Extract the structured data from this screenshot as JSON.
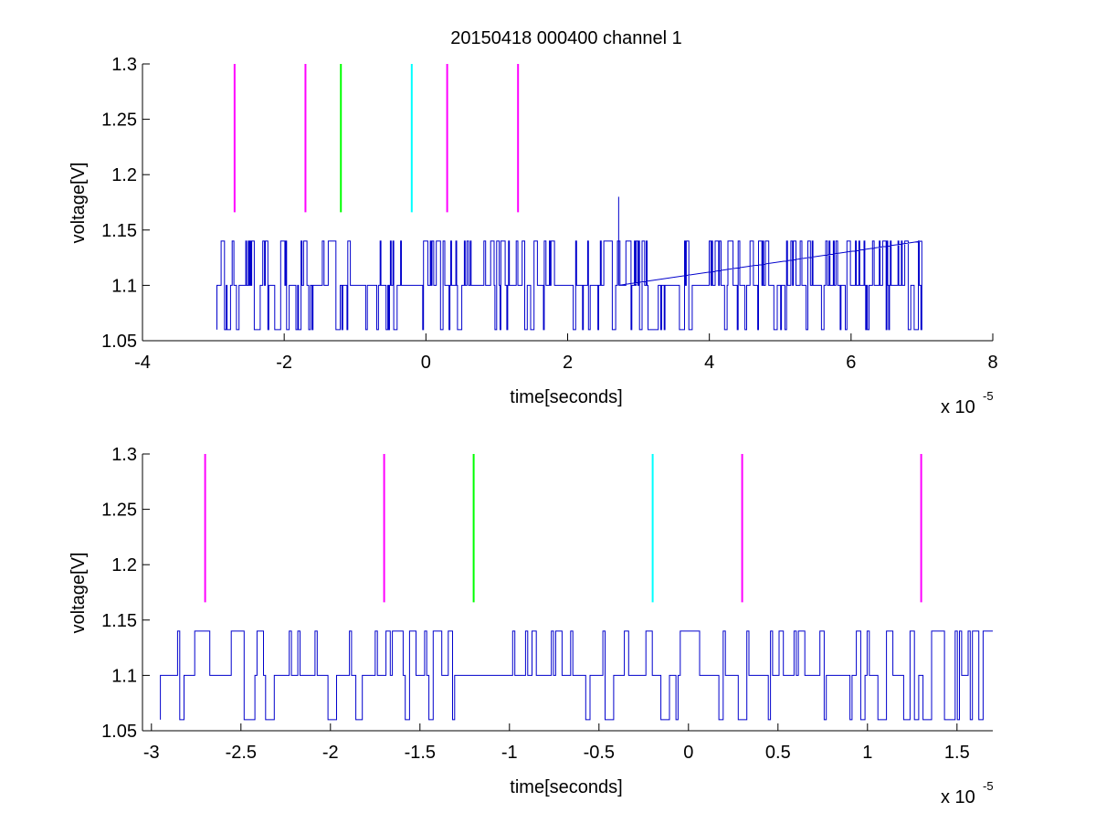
{
  "figure": {
    "title": "20150418 000400 channel 1",
    "background": "#ffffff"
  },
  "chart_data": [
    {
      "type": "line",
      "title": "20150418 000400 channel 1",
      "xlabel": "time[seconds]",
      "ylabel": "voltage[V]",
      "x_multiplier": "x 10",
      "x_multiplier_exp": "-5",
      "xlim": [
        -4,
        8
      ],
      "ylim": [
        1.05,
        1.3
      ],
      "x_ticks": [
        -4,
        -2,
        0,
        2,
        4,
        6,
        8
      ],
      "x_tick_labels": [
        "-4",
        "-2",
        "0",
        "2",
        "4",
        "6",
        "8"
      ],
      "y_ticks": [
        1.05,
        1.1,
        1.15,
        1.2,
        1.25,
        1.3
      ],
      "y_tick_labels": [
        "1.05",
        "1.1",
        "1.15",
        "1.2",
        "1.25",
        "1.3"
      ],
      "grid": false,
      "markers": [
        {
          "x": -2.7,
          "color": "#ff00ff"
        },
        {
          "x": -1.7,
          "color": "#ff00ff"
        },
        {
          "x": -1.2,
          "color": "#00ff00"
        },
        {
          "x": -0.2,
          "color": "#00ffff"
        },
        {
          "x": 0.3,
          "color": "#ff00ff"
        },
        {
          "x": 1.3,
          "color": "#ff00ff"
        }
      ],
      "marker_y_range": [
        1.166,
        1.3
      ],
      "signal": {
        "color": "#0000cc",
        "x_range": [
          -2.95,
          7.0
        ],
        "levels": [
          1.06,
          1.1,
          1.14
        ],
        "baseline": 1.1,
        "spike": {
          "x": 2.72,
          "y": 1.18
        }
      }
    },
    {
      "type": "line",
      "title": "",
      "xlabel": "time[seconds]",
      "ylabel": "voltage[V]",
      "x_multiplier": "x 10",
      "x_multiplier_exp": "-5",
      "xlim": [
        -3.05,
        1.7
      ],
      "ylim": [
        1.05,
        1.3
      ],
      "x_ticks": [
        -3,
        -2.5,
        -2,
        -1.5,
        -1,
        -0.5,
        0,
        0.5,
        1,
        1.5
      ],
      "x_tick_labels": [
        "-3",
        "-2.5",
        "-2",
        "-1.5",
        "-1",
        "-0.5",
        "0",
        "0.5",
        "1",
        "1.5"
      ],
      "y_ticks": [
        1.05,
        1.1,
        1.15,
        1.2,
        1.25,
        1.3
      ],
      "y_tick_labels": [
        "1.05",
        "1.1",
        "1.15",
        "1.2",
        "1.25",
        "1.3"
      ],
      "grid": false,
      "markers": [
        {
          "x": -2.7,
          "color": "#ff00ff"
        },
        {
          "x": -1.7,
          "color": "#ff00ff"
        },
        {
          "x": -1.2,
          "color": "#00ff00"
        },
        {
          "x": -0.2,
          "color": "#00ffff"
        },
        {
          "x": 0.3,
          "color": "#ff00ff"
        },
        {
          "x": 1.3,
          "color": "#ff00ff"
        }
      ],
      "marker_y_range": [
        1.166,
        1.3
      ],
      "signal": {
        "color": "#0000cc",
        "x_range": [
          -2.95,
          1.7
        ],
        "levels": [
          1.06,
          1.1,
          1.14
        ],
        "baseline": 1.1
      }
    }
  ]
}
